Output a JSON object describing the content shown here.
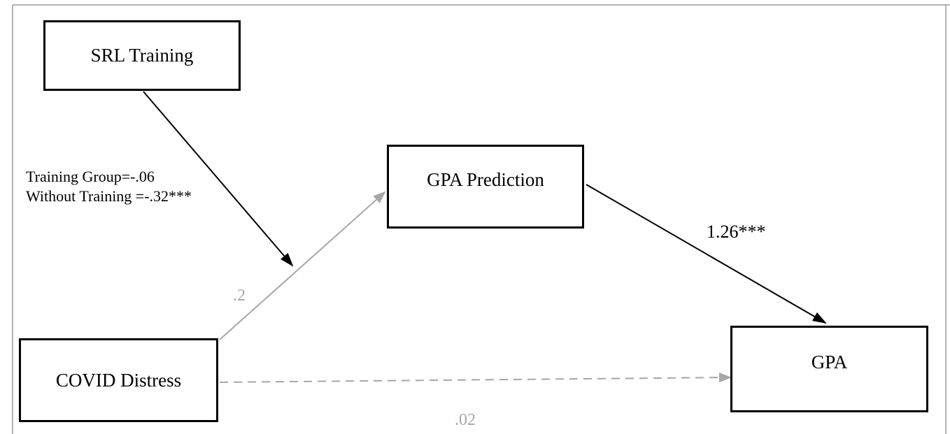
{
  "nodes": {
    "srl_training": {
      "label": "SRL Training"
    },
    "gpa_prediction": {
      "label": "GPA Prediction"
    },
    "covid_distress": {
      "label": "COVID Distress"
    },
    "gpa": {
      "label": "GPA"
    }
  },
  "edges": {
    "moderation": {
      "from": "SRL Training",
      "to": "COVID Distress → GPA Prediction path",
      "label_line1": "Training Group=-.06",
      "label_line2": "Without Training =-.32***"
    },
    "covid_to_prediction": {
      "from": "COVID Distress",
      "to": "GPA Prediction",
      "label": ".2"
    },
    "prediction_to_gpa": {
      "from": "GPA Prediction",
      "to": "GPA",
      "label": "1.26***"
    },
    "covid_to_gpa": {
      "from": "COVID Distress",
      "to": "GPA",
      "label": ".02",
      "style": "dashed"
    }
  },
  "colors": {
    "significant": "#000000",
    "nonsignificant": "#a6a6a6",
    "frame": "#9a9a9a"
  }
}
